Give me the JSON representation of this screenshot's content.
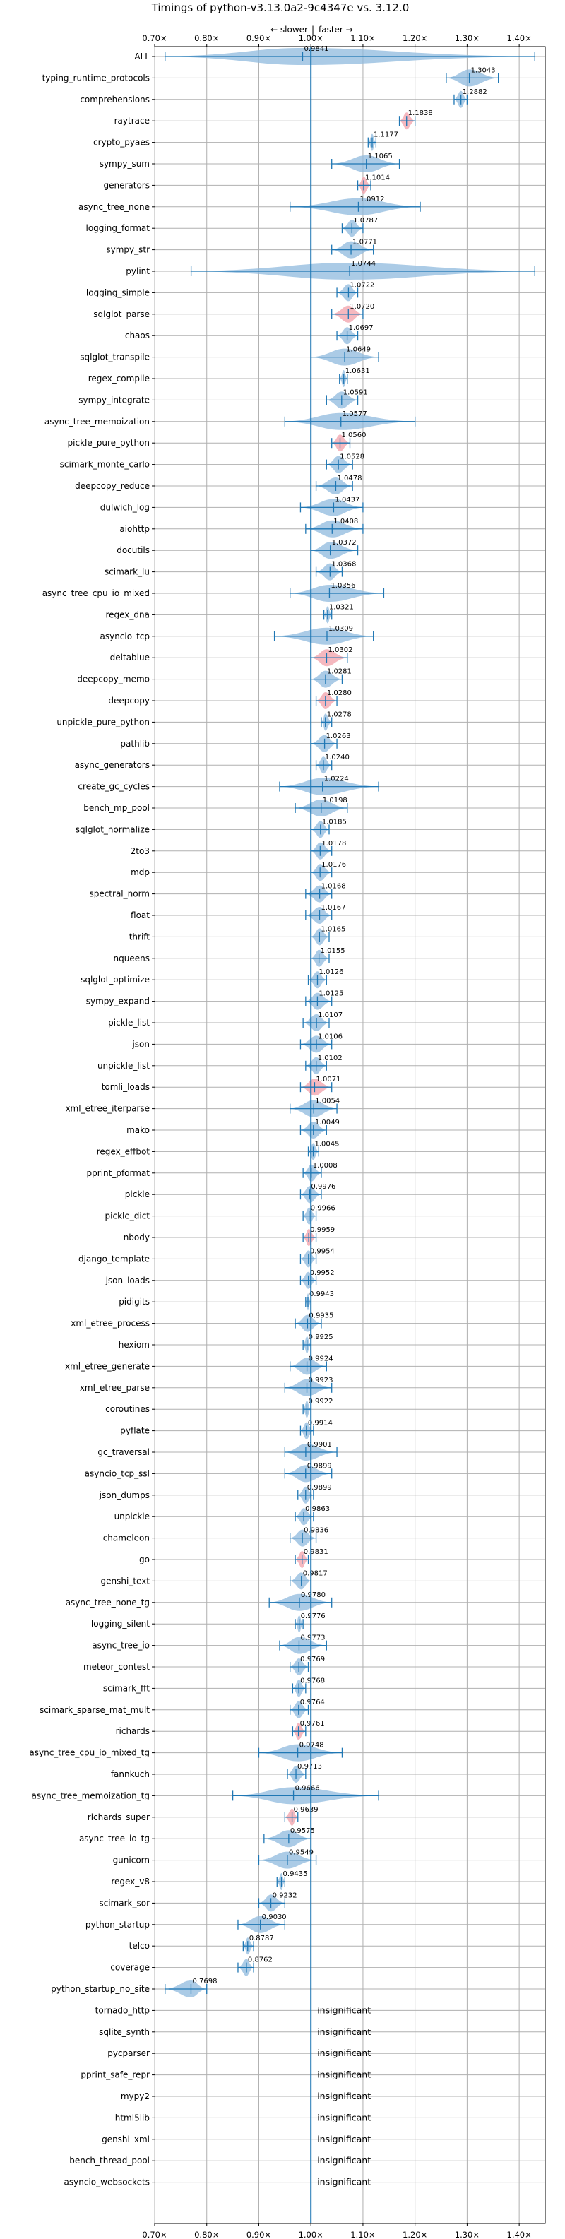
{
  "chart_data": {
    "type": "violin",
    "title": "Timings of python-v3.13.0a2-9c4347e vs. 3.12.0",
    "direction_labels": {
      "slower": "← slower",
      "separator": "|",
      "faster": "faster →"
    },
    "xlim": [
      0.7,
      1.45
    ],
    "x_ticks": [
      0.7,
      0.8,
      0.9,
      1.0,
      1.1,
      1.2,
      1.3,
      1.4
    ],
    "x_tick_labels": [
      "0.70×",
      "0.80×",
      "0.90×",
      "1.00×",
      "1.10×",
      "1.20×",
      "1.30×",
      "1.40×"
    ],
    "reference_x": 1.0,
    "grid": true,
    "insignificant_label": "insignificant",
    "colors": {
      "faster": "#8fb9dd",
      "slower": "#f2a0aa",
      "line": "#1f77b4",
      "grid": "#b0b0b0"
    },
    "benchmarks": [
      {
        "name": "ALL",
        "value": 0.9841,
        "label": "0.9841",
        "low": 0.72,
        "high": 1.43,
        "color": "blue"
      },
      {
        "name": "typing_runtime_protocols",
        "value": 1.3043,
        "label": "1.3043",
        "low": 1.26,
        "high": 1.36,
        "color": "blue"
      },
      {
        "name": "comprehensions",
        "value": 1.2882,
        "label": "1.2882",
        "low": 1.275,
        "high": 1.3,
        "color": "blue"
      },
      {
        "name": "raytrace",
        "value": 1.1838,
        "label": "1.1838",
        "low": 1.17,
        "high": 1.2,
        "color": "red"
      },
      {
        "name": "crypto_pyaes",
        "value": 1.1177,
        "label": "1.1177",
        "low": 1.11,
        "high": 1.125,
        "color": "blue"
      },
      {
        "name": "sympy_sum",
        "value": 1.1065,
        "label": "1.1065",
        "low": 1.04,
        "high": 1.17,
        "color": "blue"
      },
      {
        "name": "generators",
        "value": 1.1014,
        "label": "1.1014",
        "low": 1.09,
        "high": 1.115,
        "color": "red"
      },
      {
        "name": "async_tree_none",
        "value": 1.0912,
        "label": "1.0912",
        "low": 0.96,
        "high": 1.21,
        "color": "blue"
      },
      {
        "name": "logging_format",
        "value": 1.0787,
        "label": "1.0787",
        "low": 1.06,
        "high": 1.1,
        "color": "blue"
      },
      {
        "name": "sympy_str",
        "value": 1.0771,
        "label": "1.0771",
        "low": 1.04,
        "high": 1.12,
        "color": "blue"
      },
      {
        "name": "pylint",
        "value": 1.0744,
        "label": "1.0744",
        "low": 0.77,
        "high": 1.43,
        "color": "blue"
      },
      {
        "name": "logging_simple",
        "value": 1.0722,
        "label": "1.0722",
        "low": 1.05,
        "high": 1.09,
        "color": "blue"
      },
      {
        "name": "sqlglot_parse",
        "value": 1.072,
        "label": "1.0720",
        "low": 1.04,
        "high": 1.1,
        "color": "red"
      },
      {
        "name": "chaos",
        "value": 1.0697,
        "label": "1.0697",
        "low": 1.05,
        "high": 1.09,
        "color": "blue"
      },
      {
        "name": "sqlglot_transpile",
        "value": 1.0649,
        "label": "1.0649",
        "low": 1.0,
        "high": 1.13,
        "color": "blue"
      },
      {
        "name": "regex_compile",
        "value": 1.0631,
        "label": "1.0631",
        "low": 1.055,
        "high": 1.07,
        "color": "blue"
      },
      {
        "name": "sympy_integrate",
        "value": 1.0591,
        "label": "1.0591",
        "low": 1.03,
        "high": 1.09,
        "color": "blue"
      },
      {
        "name": "async_tree_memoization",
        "value": 1.0577,
        "label": "1.0577",
        "low": 0.95,
        "high": 1.2,
        "color": "blue"
      },
      {
        "name": "pickle_pure_python",
        "value": 1.056,
        "label": "1.0560",
        "low": 1.04,
        "high": 1.075,
        "color": "red"
      },
      {
        "name": "scimark_monte_carlo",
        "value": 1.0528,
        "label": "1.0528",
        "low": 1.03,
        "high": 1.08,
        "color": "blue"
      },
      {
        "name": "deepcopy_reduce",
        "value": 1.0478,
        "label": "1.0478",
        "low": 1.01,
        "high": 1.08,
        "color": "blue"
      },
      {
        "name": "dulwich_log",
        "value": 1.0437,
        "label": "1.0437",
        "low": 0.98,
        "high": 1.1,
        "color": "blue"
      },
      {
        "name": "aiohttp",
        "value": 1.0408,
        "label": "1.0408",
        "low": 0.99,
        "high": 1.1,
        "color": "blue"
      },
      {
        "name": "docutils",
        "value": 1.0372,
        "label": "1.0372",
        "low": 1.0,
        "high": 1.09,
        "color": "blue"
      },
      {
        "name": "scimark_lu",
        "value": 1.0368,
        "label": "1.0368",
        "low": 1.01,
        "high": 1.06,
        "color": "blue"
      },
      {
        "name": "async_tree_cpu_io_mixed",
        "value": 1.0356,
        "label": "1.0356",
        "low": 0.96,
        "high": 1.14,
        "color": "blue"
      },
      {
        "name": "regex_dna",
        "value": 1.0321,
        "label": "1.0321",
        "low": 1.025,
        "high": 1.04,
        "color": "blue"
      },
      {
        "name": "asyncio_tcp",
        "value": 1.0309,
        "label": "1.0309",
        "low": 0.93,
        "high": 1.12,
        "color": "blue"
      },
      {
        "name": "deltablue",
        "value": 1.0302,
        "label": "1.0302",
        "low": 1.0,
        "high": 1.07,
        "color": "red"
      },
      {
        "name": "deepcopy_memo",
        "value": 1.0281,
        "label": "1.0281",
        "low": 1.0,
        "high": 1.06,
        "color": "blue"
      },
      {
        "name": "deepcopy",
        "value": 1.028,
        "label": "1.0280",
        "low": 1.01,
        "high": 1.05,
        "color": "red"
      },
      {
        "name": "unpickle_pure_python",
        "value": 1.0278,
        "label": "1.0278",
        "low": 1.02,
        "high": 1.04,
        "color": "blue"
      },
      {
        "name": "pathlib",
        "value": 1.0263,
        "label": "1.0263",
        "low": 1.0,
        "high": 1.05,
        "color": "blue"
      },
      {
        "name": "async_generators",
        "value": 1.024,
        "label": "1.0240",
        "low": 1.01,
        "high": 1.04,
        "color": "blue"
      },
      {
        "name": "create_gc_cycles",
        "value": 1.0224,
        "label": "1.0224",
        "low": 0.94,
        "high": 1.13,
        "color": "blue"
      },
      {
        "name": "bench_mp_pool",
        "value": 1.0198,
        "label": "1.0198",
        "low": 0.97,
        "high": 1.07,
        "color": "blue"
      },
      {
        "name": "sqlglot_normalize",
        "value": 1.0185,
        "label": "1.0185",
        "low": 1.0,
        "high": 1.035,
        "color": "blue"
      },
      {
        "name": "2to3",
        "value": 1.0178,
        "label": "1.0178",
        "low": 1.0,
        "high": 1.04,
        "color": "blue"
      },
      {
        "name": "mdp",
        "value": 1.0176,
        "label": "1.0176",
        "low": 1.0,
        "high": 1.04,
        "color": "blue"
      },
      {
        "name": "spectral_norm",
        "value": 1.0168,
        "label": "1.0168",
        "low": 0.99,
        "high": 1.04,
        "color": "blue"
      },
      {
        "name": "float",
        "value": 1.0167,
        "label": "1.0167",
        "low": 0.99,
        "high": 1.04,
        "color": "blue"
      },
      {
        "name": "thrift",
        "value": 1.0165,
        "label": "1.0165",
        "low": 1.0,
        "high": 1.035,
        "color": "blue"
      },
      {
        "name": "nqueens",
        "value": 1.0155,
        "label": "1.0155",
        "low": 1.0,
        "high": 1.035,
        "color": "blue"
      },
      {
        "name": "sqlglot_optimize",
        "value": 1.0126,
        "label": "1.0126",
        "low": 0.995,
        "high": 1.03,
        "color": "blue"
      },
      {
        "name": "sympy_expand",
        "value": 1.0125,
        "label": "1.0125",
        "low": 0.99,
        "high": 1.04,
        "color": "blue"
      },
      {
        "name": "pickle_list",
        "value": 1.0107,
        "label": "1.0107",
        "low": 0.985,
        "high": 1.035,
        "color": "blue"
      },
      {
        "name": "json",
        "value": 1.0106,
        "label": "1.0106",
        "low": 0.98,
        "high": 1.04,
        "color": "blue"
      },
      {
        "name": "unpickle_list",
        "value": 1.0102,
        "label": "1.0102",
        "low": 0.99,
        "high": 1.03,
        "color": "blue"
      },
      {
        "name": "tomli_loads",
        "value": 1.0071,
        "label": "1.0071",
        "low": 0.98,
        "high": 1.04,
        "color": "red"
      },
      {
        "name": "xml_etree_iterparse",
        "value": 1.0054,
        "label": "1.0054",
        "low": 0.96,
        "high": 1.05,
        "color": "blue"
      },
      {
        "name": "mako",
        "value": 1.0049,
        "label": "1.0049",
        "low": 0.98,
        "high": 1.03,
        "color": "blue"
      },
      {
        "name": "regex_effbot",
        "value": 1.0045,
        "label": "1.0045",
        "low": 0.995,
        "high": 1.015,
        "color": "blue"
      },
      {
        "name": "pprint_pformat",
        "value": 1.0008,
        "label": "1.0008",
        "low": 0.985,
        "high": 1.02,
        "color": "blue"
      },
      {
        "name": "pickle",
        "value": 0.9976,
        "label": "0.9976",
        "low": 0.98,
        "high": 1.02,
        "color": "blue"
      },
      {
        "name": "pickle_dict",
        "value": 0.9966,
        "label": "0.9966",
        "low": 0.985,
        "high": 1.01,
        "color": "blue"
      },
      {
        "name": "nbody",
        "value": 0.9959,
        "label": "0.9959",
        "low": 0.985,
        "high": 1.01,
        "color": "red"
      },
      {
        "name": "django_template",
        "value": 0.9954,
        "label": "0.9954",
        "low": 0.98,
        "high": 1.01,
        "color": "blue"
      },
      {
        "name": "json_loads",
        "value": 0.9952,
        "label": "0.9952",
        "low": 0.98,
        "high": 1.01,
        "color": "blue"
      },
      {
        "name": "pidigits",
        "value": 0.9943,
        "label": "0.9943",
        "low": 0.99,
        "high": 1.0,
        "color": "blue"
      },
      {
        "name": "xml_etree_process",
        "value": 0.9935,
        "label": "0.9935",
        "low": 0.97,
        "high": 1.02,
        "color": "blue"
      },
      {
        "name": "hexiom",
        "value": 0.9925,
        "label": "0.9925",
        "low": 0.985,
        "high": 1.0,
        "color": "blue"
      },
      {
        "name": "xml_etree_generate",
        "value": 0.9924,
        "label": "0.9924",
        "low": 0.96,
        "high": 1.03,
        "color": "blue"
      },
      {
        "name": "xml_etree_parse",
        "value": 0.9923,
        "label": "0.9923",
        "low": 0.95,
        "high": 1.04,
        "color": "blue"
      },
      {
        "name": "coroutines",
        "value": 0.9922,
        "label": "0.9922",
        "low": 0.985,
        "high": 1.0,
        "color": "blue"
      },
      {
        "name": "pyflate",
        "value": 0.9914,
        "label": "0.9914",
        "low": 0.98,
        "high": 1.005,
        "color": "blue"
      },
      {
        "name": "gc_traversal",
        "value": 0.9901,
        "label": "0.9901",
        "low": 0.95,
        "high": 1.05,
        "color": "blue"
      },
      {
        "name": "asyncio_tcp_ssl",
        "value": 0.9899,
        "label": "0.9899",
        "low": 0.95,
        "high": 1.04,
        "color": "blue"
      },
      {
        "name": "json_dumps",
        "value": 0.9899,
        "label": "0.9899",
        "low": 0.975,
        "high": 1.005,
        "color": "blue"
      },
      {
        "name": "unpickle",
        "value": 0.9863,
        "label": "0.9863",
        "low": 0.97,
        "high": 1.005,
        "color": "blue"
      },
      {
        "name": "chameleon",
        "value": 0.9836,
        "label": "0.9836",
        "low": 0.96,
        "high": 1.01,
        "color": "blue"
      },
      {
        "name": "go",
        "value": 0.9831,
        "label": "0.9831",
        "low": 0.97,
        "high": 0.995,
        "color": "red"
      },
      {
        "name": "genshi_text",
        "value": 0.9817,
        "label": "0.9817",
        "low": 0.96,
        "high": 1.0,
        "color": "blue"
      },
      {
        "name": "async_tree_none_tg",
        "value": 0.978,
        "label": "0.9780",
        "low": 0.92,
        "high": 1.04,
        "color": "blue"
      },
      {
        "name": "logging_silent",
        "value": 0.9776,
        "label": "0.9776",
        "low": 0.97,
        "high": 0.985,
        "color": "blue"
      },
      {
        "name": "async_tree_io",
        "value": 0.9773,
        "label": "0.9773",
        "low": 0.94,
        "high": 1.03,
        "color": "blue"
      },
      {
        "name": "meteor_contest",
        "value": 0.9769,
        "label": "0.9769",
        "low": 0.96,
        "high": 0.995,
        "color": "blue"
      },
      {
        "name": "scimark_fft",
        "value": 0.9768,
        "label": "0.9768",
        "low": 0.965,
        "high": 0.99,
        "color": "blue"
      },
      {
        "name": "scimark_sparse_mat_mult",
        "value": 0.9764,
        "label": "0.9764",
        "low": 0.96,
        "high": 0.995,
        "color": "blue"
      },
      {
        "name": "richards",
        "value": 0.9761,
        "label": "0.9761",
        "low": 0.965,
        "high": 0.99,
        "color": "red"
      },
      {
        "name": "async_tree_cpu_io_mixed_tg",
        "value": 0.9748,
        "label": "0.9748",
        "low": 0.9,
        "high": 1.06,
        "color": "blue"
      },
      {
        "name": "fannkuch",
        "value": 0.9713,
        "label": "0.9713",
        "low": 0.955,
        "high": 0.99,
        "color": "blue"
      },
      {
        "name": "async_tree_memoization_tg",
        "value": 0.9666,
        "label": "0.9666",
        "low": 0.85,
        "high": 1.13,
        "color": "blue"
      },
      {
        "name": "richards_super",
        "value": 0.9639,
        "label": "0.9639",
        "low": 0.95,
        "high": 0.975,
        "color": "red"
      },
      {
        "name": "async_tree_io_tg",
        "value": 0.9575,
        "label": "0.9575",
        "low": 0.91,
        "high": 1.0,
        "color": "blue"
      },
      {
        "name": "gunicorn",
        "value": 0.9549,
        "label": "0.9549",
        "low": 0.9,
        "high": 1.01,
        "color": "blue"
      },
      {
        "name": "regex_v8",
        "value": 0.9435,
        "label": "0.9435",
        "low": 0.935,
        "high": 0.95,
        "color": "blue"
      },
      {
        "name": "scimark_sor",
        "value": 0.9232,
        "label": "0.9232",
        "low": 0.9,
        "high": 0.95,
        "color": "blue"
      },
      {
        "name": "python_startup",
        "value": 0.903,
        "label": "0.9030",
        "low": 0.86,
        "high": 0.95,
        "color": "blue"
      },
      {
        "name": "telco",
        "value": 0.8787,
        "label": "0.8787",
        "low": 0.87,
        "high": 0.89,
        "color": "blue"
      },
      {
        "name": "coverage",
        "value": 0.8762,
        "label": "0.8762",
        "low": 0.86,
        "high": 0.89,
        "color": "blue"
      },
      {
        "name": "python_startup_no_site",
        "value": 0.7698,
        "label": "0.7698",
        "low": 0.72,
        "high": 0.8,
        "color": "blue"
      },
      {
        "name": "tornado_http",
        "insignificant": true
      },
      {
        "name": "sqlite_synth",
        "insignificant": true
      },
      {
        "name": "pycparser",
        "insignificant": true
      },
      {
        "name": "pprint_safe_repr",
        "insignificant": true
      },
      {
        "name": "mypy2",
        "insignificant": true
      },
      {
        "name": "html5lib",
        "insignificant": true
      },
      {
        "name": "genshi_xml",
        "insignificant": true
      },
      {
        "name": "bench_thread_pool",
        "insignificant": true
      },
      {
        "name": "asyncio_websockets",
        "insignificant": true
      }
    ]
  }
}
